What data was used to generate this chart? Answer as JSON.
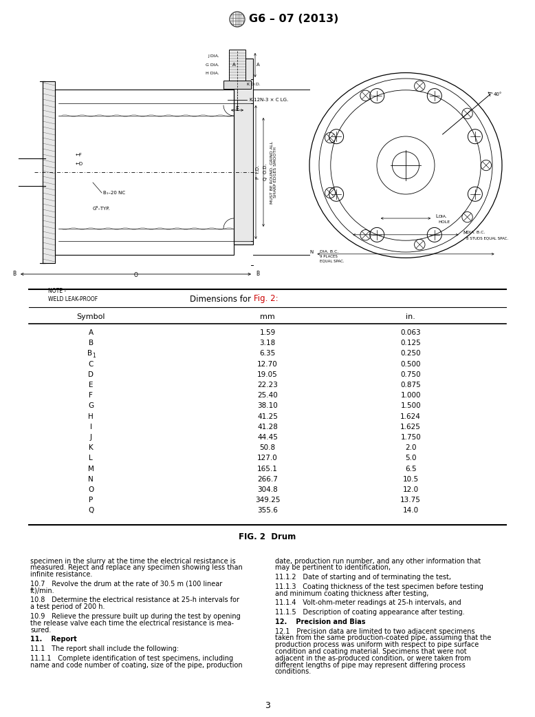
{
  "title": "G6 – 07 (2013)",
  "fig_caption": "FIG. 2  Drum",
  "page_number": "3",
  "table_title_plain": "Dimensions for ",
  "table_title_red": "Fig. 2:",
  "table_headers": [
    "Symbol",
    "mm",
    "in."
  ],
  "table_rows": [
    [
      "A",
      "1.59",
      "0.063"
    ],
    [
      "B",
      "3.18",
      "0.125"
    ],
    [
      "B1",
      "6.35",
      "0.250"
    ],
    [
      "C",
      "12.70",
      "0.500"
    ],
    [
      "D",
      "19.05",
      "0.750"
    ],
    [
      "E",
      "22.23",
      "0.875"
    ],
    [
      "F",
      "25.40",
      "1.000"
    ],
    [
      "G",
      "38.10",
      "1.500"
    ],
    [
      "H",
      "41.25",
      "1.624"
    ],
    [
      "I",
      "41.28",
      "1.625"
    ],
    [
      "J",
      "44.45",
      "1.750"
    ],
    [
      "K",
      "50.8",
      "2.0"
    ],
    [
      "L",
      "127.0",
      "5.0"
    ],
    [
      "M",
      "165.1",
      "6.5"
    ],
    [
      "N",
      "266.7",
      "10.5"
    ],
    [
      "O",
      "304.8",
      "12.0"
    ],
    [
      "P",
      "349.25",
      "13.75"
    ],
    [
      "Q",
      "355.6",
      "14.0"
    ]
  ],
  "left_col_paragraphs": [
    {
      "text": "specimen in the slurry at the time the electrical resistance is\nmeasured. Reject and replace any specimen showing less than\ninfinite resistance.",
      "bold": false,
      "indent": 0
    },
    {
      "text": "10.7 Revolve the drum at the rate of 30.5 m (100 linear\nft)/min.",
      "bold": false,
      "indent": 1
    },
    {
      "text": "10.8 Determine the electrical resistance at 25-h intervals for\na test period of 200 h.",
      "bold": false,
      "indent": 1
    },
    {
      "text": "10.9 Relieve the pressure built up during the test by opening\nthe release valve each time the electrical resistance is mea-\nsured.",
      "bold": false,
      "indent": 1
    },
    {
      "text": "11.  Report",
      "bold": true,
      "indent": 0
    },
    {
      "text": "11.1 The report shall include the following:",
      "bold": false,
      "indent": 1
    },
    {
      "text": "11.1.1 Complete identification of test specimens, including\nname and code number of coating, size of the pipe, production",
      "bold": false,
      "indent": 1
    }
  ],
  "right_col_paragraphs": [
    {
      "text": "date, production run number, and any other information that\nmay be pertinent to identification,",
      "bold": false,
      "indent": 0
    },
    {
      "text": "11.1.2 Date of starting and of terminating the test,",
      "bold": false,
      "indent": 1
    },
    {
      "text": "11.1.3 Coating thickness of the test specimen before testing\nand minimum coating thickness after testing,",
      "bold": false,
      "indent": 1
    },
    {
      "text": "11.1.4 Volt-ohm-meter readings at 25-h intervals, and",
      "bold": false,
      "indent": 1
    },
    {
      "text": "11.1.5 Description of coating appearance after testing.",
      "bold": false,
      "indent": 1
    },
    {
      "text": "12.  Precision and Bias",
      "bold": true,
      "indent": 0
    },
    {
      "text": "12.1 Precision data are limited to two adjacent specimens\ntaken from the same production-coated pipe, assuming that the\nproduction process was uniform with respect to pipe surface\ncondition and coating material. Specimens that were not\nadjacent in the as-produced condition, or were taken from\ndifferent lengths of pipe may represent differing process\nconditions.",
      "bold": false,
      "indent": 1
    }
  ],
  "bg_color": "#ffffff",
  "text_color": "#000000",
  "line_color": "#000000",
  "red_color": "#cc0000",
  "font_size_body": 7.0,
  "font_size_table": 7.5,
  "font_size_title": 11.5,
  "font_size_draw": 5.0
}
